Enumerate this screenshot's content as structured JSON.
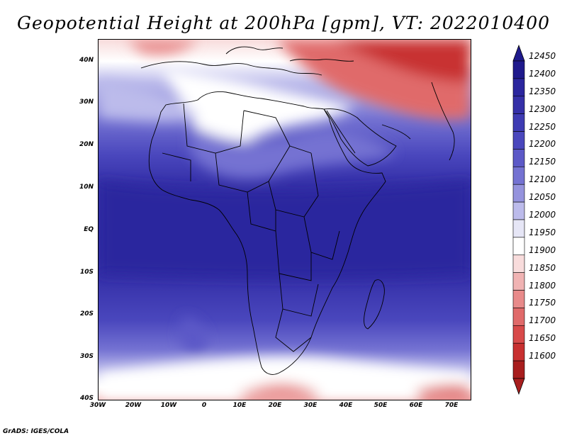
{
  "title": "Geopotential Height at 200hPa [gpm], VT: 2022010400",
  "lat_ticks": [
    "40N",
    "30N",
    "20N",
    "10N",
    "EQ",
    "10S",
    "20S",
    "30S",
    "40S"
  ],
  "lon_ticks": [
    "30W",
    "20W",
    "10W",
    "0",
    "10E",
    "20E",
    "30E",
    "40E",
    "50E",
    "60E",
    "70E"
  ],
  "colorbar": {
    "levels": [
      "12450",
      "12400",
      "12350",
      "12300",
      "12250",
      "12200",
      "12150",
      "12100",
      "12050",
      "12000",
      "11950",
      "11900",
      "11850",
      "11800",
      "11750",
      "11700",
      "11650",
      "11600"
    ],
    "colors": [
      "#1f1a8c",
      "#2b269e",
      "#3530a8",
      "#3e3bb3",
      "#4a47bd",
      "#5c59c7",
      "#7472d2",
      "#9593dd",
      "#bcbbeb",
      "#e6e6f6",
      "#ffffff",
      "#f8dcdc",
      "#f0b3b3",
      "#e88a8a",
      "#e06a6a",
      "#d84a4a",
      "#c83030",
      "#a81e1e"
    ]
  },
  "credit": "GrADS: IGES/COLA"
}
